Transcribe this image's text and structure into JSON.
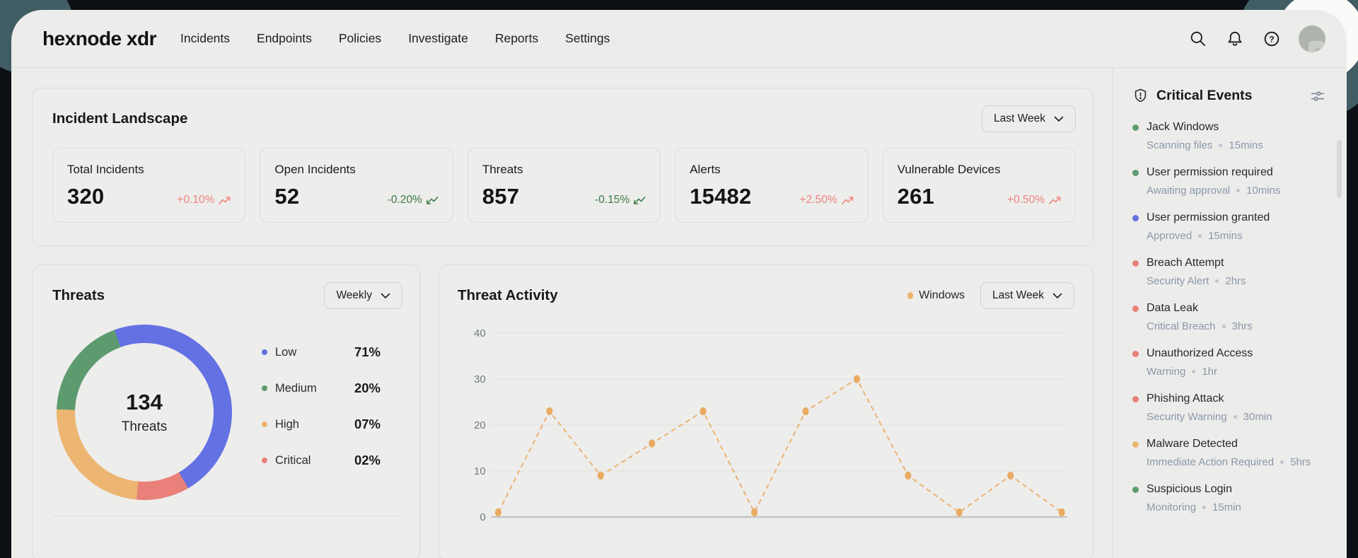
{
  "colors": {
    "change_up": "#ee837b",
    "change_down": "#3d7a45",
    "line_series": "#ecb271",
    "grid": "#e1e1de",
    "axis": "#c6c6c4",
    "tick_text": "#6e7984",
    "severity": {
      "green": "#5d9b6f",
      "blue": "#6471e3",
      "red": "#e9807a",
      "orange": "#ecb570"
    },
    "donut": {
      "low": "#6471e3",
      "medium": "#5d9b6f",
      "high": "#ecb571",
      "critical": "#e9807a"
    }
  },
  "nav": {
    "logo": "hexnode xdr",
    "items": [
      "Incidents",
      "Endpoints",
      "Policies",
      "Investigate",
      "Reports",
      "Settings"
    ],
    "icons": [
      "search-icon",
      "notifications-icon",
      "help-icon",
      "avatar"
    ]
  },
  "incident_landscape": {
    "title": "Incident Landscape",
    "period": "Last Week",
    "stats": [
      {
        "label": "Total Incidents",
        "value": "320",
        "change": "+0.10%",
        "trend": "up"
      },
      {
        "label": "Open Incidents",
        "value": "52",
        "change": "-0.20%",
        "trend": "down"
      },
      {
        "label": "Threats",
        "value": "857",
        "change": "-0.15%",
        "trend": "down"
      },
      {
        "label": "Alerts",
        "value": "15482",
        "change": "+2.50%",
        "trend": "up"
      },
      {
        "label": "Vulnerable Devices",
        "value": "261",
        "change": "+0.50%",
        "trend": "up"
      }
    ]
  },
  "threats_donut": {
    "title": "Threats",
    "period": "Weekly",
    "center_value": "134",
    "center_label": "Threats"
  },
  "threat_activity": {
    "title": "Threat Activity",
    "series_label": "Windows",
    "period": "Last Week"
  },
  "chart_data": [
    {
      "type": "pie",
      "title": "Threats",
      "center_value": 134,
      "center_label": "Threats",
      "labels": [
        "Low",
        "Medium",
        "High",
        "Critical"
      ],
      "values": [
        71,
        20,
        7,
        2
      ],
      "value_labels": [
        "71%",
        "20%",
        "07%",
        "02%"
      ],
      "colors": [
        "#6471e3",
        "#5d9b6f",
        "#ecb571",
        "#e9807a"
      ],
      "legend_position": "right",
      "display_arcs": {
        "start_deg": 340,
        "segments": [
          [
            "#6471e3",
            170
          ],
          [
            "#e9807a",
            35
          ],
          [
            "#ecb571",
            87
          ],
          [
            "#5d9b6f",
            68
          ]
        ]
      }
    },
    {
      "type": "line",
      "title": "Threat Activity",
      "series": [
        {
          "name": "Windows",
          "values": [
            1,
            23,
            9,
            16,
            23,
            1,
            23,
            30,
            9,
            1,
            9,
            1
          ]
        }
      ],
      "x": [
        1,
        2,
        3,
        4,
        5,
        6,
        7,
        8,
        9,
        10,
        11,
        12
      ],
      "x_tick_labels": [],
      "y_ticks": [
        0,
        10,
        20,
        30,
        40
      ],
      "ylim": [
        0,
        40
      ],
      "grid": true,
      "line_style": "dashed",
      "markers": true,
      "legend_position": "top-right"
    }
  ],
  "critical_events": {
    "title": "Critical Events",
    "items": [
      {
        "title": "Jack Windows",
        "status": "Scanning files",
        "time": "15mins",
        "severity": "green"
      },
      {
        "title": "User permission required",
        "status": "Awaiting approval",
        "time": "10mins",
        "severity": "green"
      },
      {
        "title": "User permission granted",
        "status": "Approved",
        "time": "15mins",
        "severity": "blue"
      },
      {
        "title": "Breach Attempt",
        "status": "Security Alert",
        "time": "2hrs",
        "severity": "red"
      },
      {
        "title": "Data Leak",
        "status": "Critical Breach",
        "time": "3hrs",
        "severity": "red"
      },
      {
        "title": "Unauthorized Access",
        "status": "Warning",
        "time": "1hr",
        "severity": "red"
      },
      {
        "title": "Phishing Attack",
        "status": "Security Warning",
        "time": "30min",
        "severity": "red"
      },
      {
        "title": "Malware Detected",
        "status": "Immediate Action Required",
        "time": "5hrs",
        "severity": "orange"
      },
      {
        "title": "Suspicious Login",
        "status": "Monitoring",
        "time": "15min",
        "severity": "green"
      }
    ]
  }
}
